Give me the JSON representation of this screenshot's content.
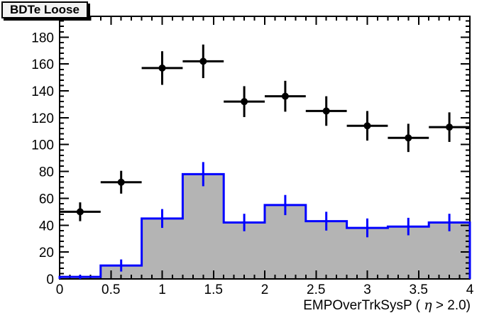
{
  "title_box": {
    "label": "BDTe Loose"
  },
  "chart_data": {
    "type": "histogram_with_points",
    "title": "BDTe Loose",
    "legend": "none",
    "grid": false,
    "ticks_on_all_sides": true,
    "x_axis": {
      "title_full": "EMPOverTrkSysP ( η > 2.0)",
      "title_prefix": "EMPOverTrkSysP ( ",
      "title_symbol": "η",
      "title_suffix": " > 2.0)",
      "min": 0,
      "max": 4,
      "major_tick_step": 0.5,
      "minor_tick_step": 0.1,
      "tick_labels": [
        "0",
        "0.5",
        "1",
        "1.5",
        "2",
        "2.5",
        "3",
        "3.5",
        "4"
      ]
    },
    "y_axis": {
      "title": "",
      "min": 0,
      "max": 195.5,
      "major_tick_step": 20,
      "minor_tick_step": 4,
      "tick_labels": [
        "0",
        "20",
        "40",
        "60",
        "80",
        "100",
        "120",
        "140",
        "160",
        "180"
      ]
    },
    "histogram": {
      "name": "blue-filled-histogram",
      "fill_color": "#b4b4b4",
      "line_color": "#0000ff",
      "line_width": 3,
      "bin_edges": [
        0,
        0.4,
        0.8,
        1.2,
        1.6,
        2.0,
        2.4,
        2.8,
        3.2,
        3.6,
        4.0
      ],
      "values": [
        1.5,
        10,
        45,
        78,
        42,
        55,
        43,
        38,
        39,
        42
      ],
      "errors": [
        1.5,
        4.5,
        7,
        9,
        6.5,
        7.5,
        7,
        7,
        6.5,
        6.5
      ]
    },
    "points": {
      "name": "black-data-points",
      "color": "#000000",
      "marker": "filled-circle",
      "marker_radius_px": 5,
      "line_width": 3,
      "x": [
        0.2,
        0.6,
        1.0,
        1.4,
        1.8,
        2.2,
        2.6,
        3.0,
        3.4,
        3.8
      ],
      "y": [
        50,
        72,
        157,
        162,
        132,
        136,
        125,
        114,
        105,
        113
      ],
      "xerr": 0.2,
      "yerr": [
        7,
        8.5,
        12.5,
        12.5,
        11.5,
        11.5,
        11,
        11,
        10.5,
        11
      ]
    }
  }
}
